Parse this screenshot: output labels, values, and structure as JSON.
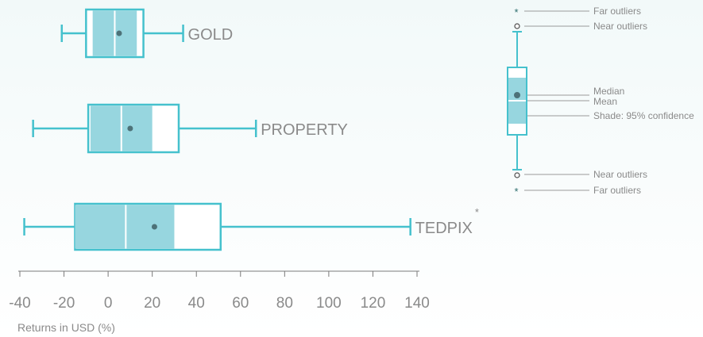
{
  "chart_data": {
    "type": "boxplot",
    "xlabel": "Returns in USD (%)",
    "xlim": [
      -40,
      140
    ],
    "xticks": [
      -40,
      -20,
      0,
      20,
      40,
      60,
      80,
      100,
      120,
      140
    ],
    "colors": {
      "box": "#45c1cd",
      "ci_shade": "#97d6df",
      "median": "#ffffff",
      "mean_dot": "#4d7278",
      "axis": "#7a7a7a"
    },
    "categories": [
      "GOLD",
      "PROPERTY",
      "TEDPIX"
    ],
    "boxes": [
      {
        "name": "GOLD",
        "whisker_low": -21,
        "q1": -10,
        "median": 3,
        "q3": 16,
        "whisker_high": 34,
        "mean": 5,
        "ci_low": -7,
        "ci_high": 13,
        "far_outlier": false
      },
      {
        "name": "PROPERTY",
        "whisker_low": -34,
        "q1": -9,
        "median": 6,
        "q3": 32,
        "whisker_high": 67,
        "mean": 10,
        "ci_low": -8,
        "ci_high": 20,
        "far_outlier": false
      },
      {
        "name": "TEDPIX",
        "whisker_low": -38,
        "q1": -15,
        "median": 8,
        "q3": 51,
        "whisker_high": 137,
        "mean": 21,
        "ci_low": -15,
        "ci_high": 30,
        "far_outlier": true
      }
    ],
    "legend": {
      "labels": [
        "Far outliers",
        "Near outliers",
        "Median",
        "Mean",
        "Shade: 95% confidence",
        "Near outliers",
        "Far outliers"
      ]
    },
    "outlier_symbol": "*"
  }
}
